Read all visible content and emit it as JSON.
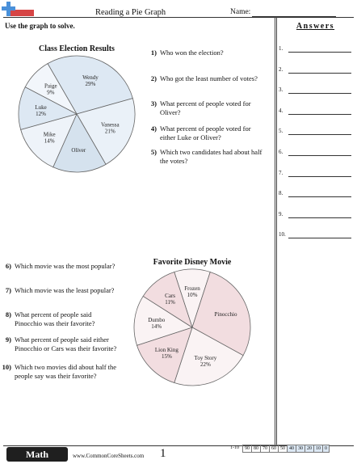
{
  "header": {
    "title": "Reading a Pie Graph",
    "name_label": "Name:",
    "instructions": "Use the graph to solve."
  },
  "answers": {
    "heading": "Answers",
    "numbers": [
      "1.",
      "2.",
      "3.",
      "4.",
      "5.",
      "6.",
      "7.",
      "8.",
      "9.",
      "10."
    ]
  },
  "chart_data": [
    {
      "type": "pie",
      "title": "Class Election Results",
      "slices": [
        {
          "label": "Wendy",
          "value": "29%",
          "percent": 29,
          "color": "#dde8f3"
        },
        {
          "label": "Vanessa",
          "value": "21%",
          "percent": 21,
          "color": "#eaf1f8"
        },
        {
          "label": "Oliver",
          "value": "",
          "percent": 15,
          "color": "#d5e2ee"
        },
        {
          "label": "Mike",
          "value": "14%",
          "percent": 14,
          "color": "#eef3f9"
        },
        {
          "label": "Luke",
          "value": "12%",
          "percent": 12,
          "color": "#dde8f3"
        },
        {
          "label": "Paige",
          "value": "9%",
          "percent": 9,
          "color": "#f2f6fb"
        }
      ]
    },
    {
      "type": "pie",
      "title": "Favorite Disney Movie",
      "slices": [
        {
          "label": "Frozen",
          "value": "10%",
          "percent": 10,
          "color": "#faf3f4"
        },
        {
          "label": "Pinocchio",
          "value": "",
          "percent": 28,
          "color": "#f2dde0"
        },
        {
          "label": "Toy Story",
          "value": "22%",
          "percent": 22,
          "color": "#faf3f4"
        },
        {
          "label": "Lion King",
          "value": "15%",
          "percent": 15,
          "color": "#f2dde0"
        },
        {
          "label": "Dumbo",
          "value": "14%",
          "percent": 14,
          "color": "#faf3f4"
        },
        {
          "label": "Cars",
          "value": "11%",
          "percent": 11,
          "color": "#f2dde0"
        }
      ]
    }
  ],
  "questions_top": [
    {
      "num": "1)",
      "text": "Who won the election?"
    },
    {
      "num": "2)",
      "text": "Who got the least number of votes?"
    },
    {
      "num": "3)",
      "text": "What percent of people voted for Oliver?"
    },
    {
      "num": "4)",
      "text": "What percent of people voted for either Luke or Oliver?"
    },
    {
      "num": "5)",
      "text": "Which two candidates had about half the votes?"
    }
  ],
  "questions_bottom": [
    {
      "num": "6)",
      "text": "Which movie was the most popular?"
    },
    {
      "num": "7)",
      "text": "Which movie was the least popular?"
    },
    {
      "num": "8)",
      "text": "What percent of people said Pinocchio was their favorite?"
    },
    {
      "num": "9)",
      "text": "What percent of people said either Pinocchio or Cars was their favorite?"
    },
    {
      "num": "10)",
      "text": "Which two movies did about half the people say was their favorite?"
    }
  ],
  "footer": {
    "badge": "Math",
    "site": "www.CommonCoreSheets.com",
    "page": "1",
    "score_label": "1-10",
    "scores": [
      "90",
      "80",
      "70",
      "60",
      "50",
      "40",
      "30",
      "20",
      "10",
      "0"
    ]
  }
}
